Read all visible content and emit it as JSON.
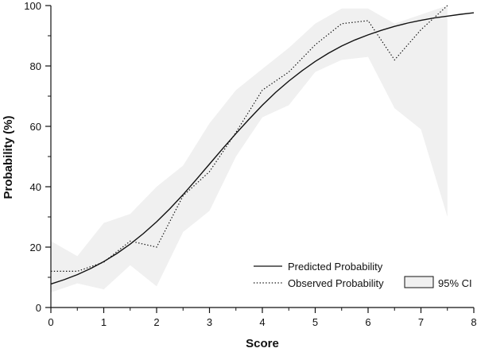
{
  "chart_data": {
    "type": "line",
    "xlabel": "Score",
    "ylabel": "Probability (%)",
    "xlim": [
      0,
      8
    ],
    "ylim": [
      0,
      100
    ],
    "x_ticks": [
      "0",
      "1",
      "2",
      "3",
      "4",
      "5",
      "6",
      "7",
      "8"
    ],
    "y_ticks": [
      "0",
      "20",
      "40",
      "60",
      "80",
      "100"
    ],
    "grid": false,
    "legend_position": "bottom-right",
    "series": [
      {
        "name": "Predicted Probability",
        "style": "solid",
        "color": "#111111",
        "x": [
          0,
          0.25,
          0.5,
          0.75,
          1,
          1.25,
          1.5,
          1.75,
          2,
          2.25,
          2.5,
          2.75,
          3,
          3.25,
          3.5,
          3.75,
          4,
          4.25,
          4.5,
          4.75,
          5,
          5.25,
          5.5,
          5.75,
          6,
          6.25,
          6.5,
          6.75,
          7,
          7.25,
          7.5,
          7.75,
          8
        ],
        "values": [
          7.8,
          9.2,
          10.9,
          12.9,
          15.2,
          17.9,
          21,
          24.5,
          28.4,
          32.7,
          37.4,
          42.4,
          47.5,
          52.6,
          57.6,
          62.4,
          67,
          71.2,
          75,
          78.4,
          81.5,
          84.2,
          86.6,
          88.6,
          90.3,
          91.8,
          93.1,
          94.2,
          95.1,
          95.9,
          96.5,
          97.1,
          97.6
        ]
      },
      {
        "name": "Observed Probability",
        "style": "dotted",
        "color": "#111111",
        "x": [
          0,
          0.5,
          1,
          1.5,
          2,
          2.5,
          3,
          3.5,
          4,
          4.5,
          5,
          5.5,
          6,
          6.5,
          7,
          7.5
        ],
        "values": [
          12,
          12,
          15,
          22,
          20,
          37,
          45,
          58,
          72,
          78,
          87,
          94,
          95,
          82,
          92,
          100
        ]
      }
    ],
    "ci_band": {
      "name": "95% CI",
      "color": "#f0f0f0",
      "x": [
        0,
        0.5,
        1,
        1.5,
        2,
        2.5,
        3,
        3.5,
        4,
        4.5,
        5,
        5.5,
        6,
        6.5,
        7,
        7.5
      ],
      "lower": [
        5,
        8,
        6,
        14,
        7,
        25,
        32,
        50,
        63,
        67,
        78,
        82,
        83,
        66,
        59,
        30
      ],
      "upper": [
        22,
        17,
        28,
        31,
        40,
        47,
        61,
        72,
        79,
        86,
        94,
        99,
        99,
        94,
        97,
        100
      ]
    }
  }
}
